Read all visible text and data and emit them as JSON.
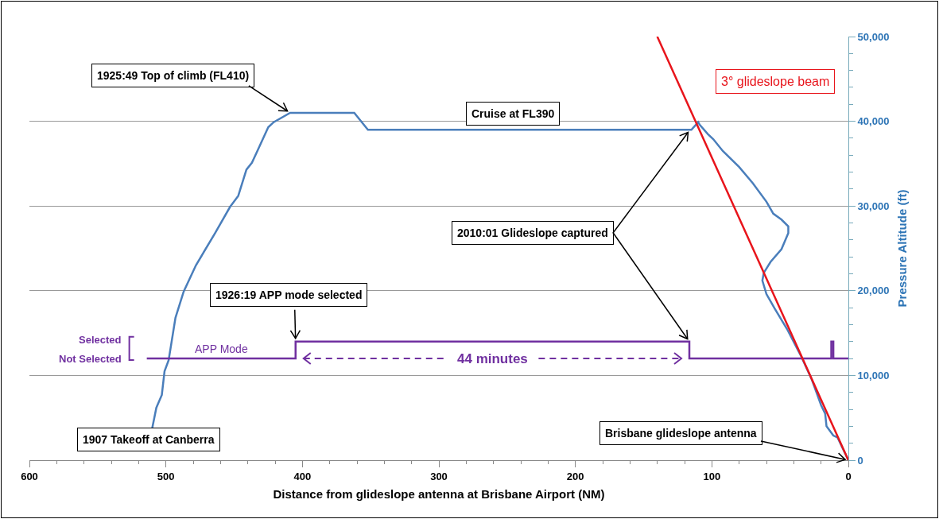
{
  "chart_data": {
    "type": "line",
    "xlabel": "Distance from glideslope antenna at Brisbane Airport (NM)",
    "ylabel": "Pressure Altitude (ft)",
    "xlim": [
      600,
      0
    ],
    "xticks": [
      600,
      {
        "value": 580,
        "label": null
      },
      {
        "value": 560,
        "label": null
      },
      {
        "value": 540,
        "label": null
      },
      {
        "value": 520,
        "label": null
      },
      500,
      {
        "value": 480,
        "label": null
      },
      {
        "value": 460,
        "label": null
      },
      {
        "value": 440,
        "label": null
      },
      {
        "value": 420,
        "label": null
      },
      400,
      {
        "value": 380,
        "label": null
      },
      {
        "value": 360,
        "label": null
      },
      {
        "value": 340,
        "label": null
      },
      {
        "value": 320,
        "label": null
      },
      300,
      {
        "value": 280,
        "label": null
      },
      {
        "value": 260,
        "label": null
      },
      {
        "value": 240,
        "label": null
      },
      {
        "value": 220,
        "label": null
      },
      200,
      {
        "value": 180,
        "label": null
      },
      {
        "value": 160,
        "label": null
      },
      {
        "value": 140,
        "label": null
      },
      {
        "value": 120,
        "label": null
      },
      100,
      {
        "value": 80,
        "label": null
      },
      {
        "value": 60,
        "label": null
      },
      {
        "value": 40,
        "label": null
      },
      {
        "value": 20,
        "label": null
      },
      0
    ],
    "ylim": [
      0,
      50000
    ],
    "yticks": [
      0,
      {
        "value": 2000,
        "label": null
      },
      {
        "value": 4000,
        "label": null
      },
      {
        "value": 6000,
        "label": null
      },
      {
        "value": 8000,
        "label": null
      },
      {
        "value": 10000,
        "label": "10,000"
      },
      {
        "value": 12000,
        "label": null
      },
      {
        "value": 14000,
        "label": null
      },
      {
        "value": 16000,
        "label": null
      },
      {
        "value": 18000,
        "label": null
      },
      {
        "value": 20000,
        "label": "20,000"
      },
      {
        "value": 22000,
        "label": null
      },
      {
        "value": 24000,
        "label": null
      },
      {
        "value": 26000,
        "label": null
      },
      {
        "value": 28000,
        "label": null
      },
      {
        "value": 30000,
        "label": "30,000"
      },
      {
        "value": 32000,
        "label": null
      },
      {
        "value": 34000,
        "label": null
      },
      {
        "value": 36000,
        "label": null
      },
      {
        "value": 38000,
        "label": null
      },
      {
        "value": 40000,
        "label": "40,000"
      },
      {
        "value": 42000,
        "label": null
      },
      {
        "value": 44000,
        "label": null
      },
      {
        "value": 46000,
        "label": null
      },
      {
        "value": 48000,
        "label": null
      },
      {
        "value": 50000,
        "label": "50,000"
      }
    ],
    "grid": "y",
    "legend": false,
    "series": [
      {
        "color": "#4a7ebb",
        "x": [
          510,
          507,
          503,
          501,
          498,
          493,
          487,
          478,
          464,
          453,
          447,
          441,
          437,
          433,
          425,
          421,
          409,
          362,
          352,
          115,
          110,
          109,
          103,
          99,
          92,
          80,
          70,
          60,
          55,
          49,
          44,
          44,
          49,
          57,
          62,
          63,
          60,
          54,
          45,
          35,
          27,
          20,
          17,
          16,
          11,
          8,
          0
        ],
        "values": [
          3800,
          6200,
          7700,
          10500,
          11800,
          16800,
          19900,
          23000,
          26800,
          29900,
          31200,
          34300,
          35100,
          36500,
          39300,
          39900,
          41000,
          41000,
          39000,
          39000,
          39900,
          39600,
          38500,
          37900,
          36500,
          34600,
          32700,
          30500,
          29100,
          28400,
          27600,
          26800,
          24900,
          23400,
          22100,
          21200,
          19600,
          17900,
          15500,
          12400,
          9600,
          6500,
          5500,
          4000,
          2900,
          2700,
          0
        ]
      },
      {
        "type": "step",
        "name": "APP Mode",
        "color": "#7030a0",
        "x": [
          514,
          405,
          116.5,
          12.5,
          11,
          0
        ],
        "values": [
          12000,
          14000,
          12000,
          14000,
          12000,
          12000
        ]
      },
      {
        "name": "3° glideslope beam",
        "color": "#e8141b",
        "x": [
          0,
          140
        ],
        "values": [
          0,
          50000
        ]
      }
    ],
    "annotations": [
      {
        "text": "1925:49 Top of climb (FL410)",
        "x": 409,
        "y": 41000
      },
      {
        "text": "Cruise at FL390",
        "x": 246,
        "y": 39000
      },
      {
        "text": "2010:01 Glideslope captured",
        "x": 116,
        "y": 39000
      },
      {
        "text": "1926:19 APP mode selected",
        "x": 405,
        "y": 14000
      },
      {
        "text": "1907 Takeoff at Canberra",
        "x": 510,
        "y": 3800
      },
      {
        "text": "Brisbane glideslope antenna",
        "x": 0,
        "y": 0
      },
      "44 minutes",
      "Selected",
      "Not Selected"
    ]
  }
}
